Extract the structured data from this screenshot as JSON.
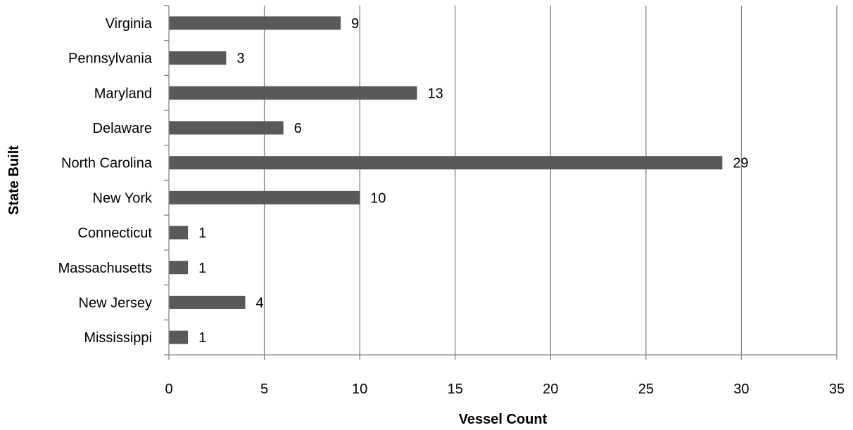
{
  "chart_data": {
    "type": "bar",
    "orientation": "horizontal",
    "title": "",
    "xlabel": "Vessel Count",
    "ylabel": "State Built",
    "categories": [
      "Virginia",
      "Pennsylvania",
      "Maryland",
      "Delaware",
      "North Carolina",
      "New York",
      "Connecticut",
      "Massachusetts",
      "New Jersey",
      "Mississippi"
    ],
    "values": [
      9,
      3,
      13,
      6,
      29,
      10,
      1,
      1,
      4,
      1
    ],
    "xlim": [
      0,
      35
    ],
    "xticks": [
      0,
      5,
      10,
      15,
      20,
      25,
      30,
      35
    ],
    "grid": "vertical",
    "legend": "none",
    "data_labels": true
  },
  "colors": {
    "bar": "#595959",
    "gridline": "#868686",
    "text": "#000000"
  }
}
